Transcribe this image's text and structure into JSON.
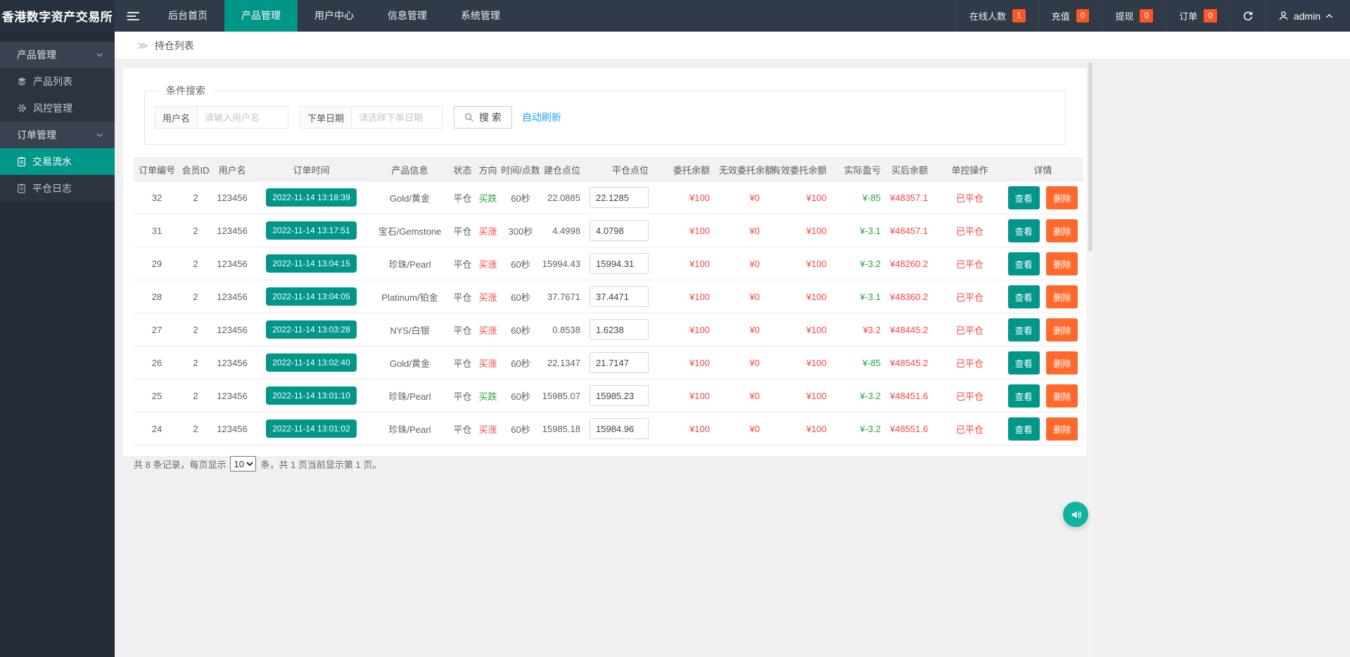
{
  "topbar": {
    "brand": "香港数字资产交易所",
    "nav": [
      {
        "name": "home",
        "label": "后台首页",
        "active": false
      },
      {
        "name": "product",
        "label": "产品管理",
        "active": true
      },
      {
        "name": "user-center",
        "label": "用户中心",
        "active": false
      },
      {
        "name": "info",
        "label": "信息管理",
        "active": false
      },
      {
        "name": "system",
        "label": "系统管理",
        "active": false
      }
    ],
    "stats": [
      {
        "name": "online",
        "label": "在线人数",
        "value": "1"
      },
      {
        "name": "recharge",
        "label": "充值",
        "value": "0"
      },
      {
        "name": "withdraw",
        "label": "提现",
        "value": "0"
      },
      {
        "name": "orders",
        "label": "订单",
        "value": "0"
      }
    ],
    "user": "admin"
  },
  "sidebar": {
    "sections": [
      {
        "label": "产品管理",
        "items": [
          {
            "name": "product-list",
            "label": "产品列表",
            "icon": "layers",
            "active": false
          },
          {
            "name": "risk-control",
            "label": "风控管理",
            "icon": "gear",
            "active": false
          }
        ]
      },
      {
        "label": "订单管理",
        "items": [
          {
            "name": "trade-flow",
            "label": "交易流水",
            "icon": "doc",
            "active": true
          },
          {
            "name": "close-log",
            "label": "平仓日志",
            "icon": "doc",
            "active": false
          }
        ]
      }
    ]
  },
  "breadcrumb": "持仓列表",
  "search": {
    "legend": "条件搜索",
    "username_label": "用户名",
    "username_placeholder": "请输入用户名",
    "date_label": "下单日期",
    "date_placeholder": "请选择下单日期",
    "search_button": "搜 索",
    "auto_refresh": "自动刷新"
  },
  "table": {
    "headers": [
      "订单编号",
      "会员ID",
      "用户名",
      "订单时间",
      "产品信息",
      "状态",
      "方向",
      "时间/点数",
      "建仓点位",
      "平仓点位",
      "委托余额",
      "无效委托余额",
      "有效委托余额",
      "实际盈亏",
      "买后余额",
      "单控操作",
      "详情"
    ],
    "view_label": "查看",
    "delete_label": "删除",
    "rows": [
      {
        "order_id": "32",
        "member_id": "2",
        "username": "123456",
        "time": "2022-11-14 13:18:39",
        "product": "Gold/黄金",
        "status": "平仓",
        "direction": "买跌",
        "direction_color": "green",
        "period": "60秒",
        "open_point": "22.0885",
        "close_point": "22.1285",
        "entrust": "¥100",
        "invalid_entrust": "¥0",
        "valid_entrust": "¥100",
        "pnl": "¥-85",
        "pnl_color": "green",
        "balance": "¥48357.1",
        "control": "已平仓"
      },
      {
        "order_id": "31",
        "member_id": "2",
        "username": "123456",
        "time": "2022-11-14 13:17:51",
        "product": "宝石/Gemstone",
        "status": "平仓",
        "direction": "买涨",
        "direction_color": "red",
        "period": "300秒",
        "open_point": "4.4998",
        "close_point": "4.0798",
        "entrust": "¥100",
        "invalid_entrust": "¥0",
        "valid_entrust": "¥100",
        "pnl": "¥-3.1",
        "pnl_color": "green",
        "balance": "¥48457.1",
        "control": "已平仓"
      },
      {
        "order_id": "29",
        "member_id": "2",
        "username": "123456",
        "time": "2022-11-14 13:04:15",
        "product": "珍珠/Pearl",
        "status": "平仓",
        "direction": "买涨",
        "direction_color": "red",
        "period": "60秒",
        "open_point": "15994.43",
        "close_point": "15994.31",
        "entrust": "¥100",
        "invalid_entrust": "¥0",
        "valid_entrust": "¥100",
        "pnl": "¥-3.2",
        "pnl_color": "green",
        "balance": "¥48260.2",
        "control": "已平仓"
      },
      {
        "order_id": "28",
        "member_id": "2",
        "username": "123456",
        "time": "2022-11-14 13:04:05",
        "product": "Platinum/铂金",
        "status": "平仓",
        "direction": "买涨",
        "direction_color": "red",
        "period": "60秒",
        "open_point": "37.7671",
        "close_point": "37.4471",
        "entrust": "¥100",
        "invalid_entrust": "¥0",
        "valid_entrust": "¥100",
        "pnl": "¥-3.1",
        "pnl_color": "green",
        "balance": "¥48360.2",
        "control": "已平仓"
      },
      {
        "order_id": "27",
        "member_id": "2",
        "username": "123456",
        "time": "2022-11-14 13:03:28",
        "product": "NYS/白银",
        "status": "平仓",
        "direction": "买涨",
        "direction_color": "red",
        "period": "60秒",
        "open_point": "0.8538",
        "close_point": "1.6238",
        "entrust": "¥100",
        "invalid_entrust": "¥0",
        "valid_entrust": "¥100",
        "pnl": "¥3.2",
        "pnl_color": "red",
        "balance": "¥48445.2",
        "control": "已平仓"
      },
      {
        "order_id": "26",
        "member_id": "2",
        "username": "123456",
        "time": "2022-11-14 13:02:40",
        "product": "Gold/黄金",
        "status": "平仓",
        "direction": "买涨",
        "direction_color": "red",
        "period": "60秒",
        "open_point": "22.1347",
        "close_point": "21.7147",
        "entrust": "¥100",
        "invalid_entrust": "¥0",
        "valid_entrust": "¥100",
        "pnl": "¥-85",
        "pnl_color": "green",
        "balance": "¥48545.2",
        "control": "已平仓"
      },
      {
        "order_id": "25",
        "member_id": "2",
        "username": "123456",
        "time": "2022-11-14 13:01:10",
        "product": "珍珠/Pearl",
        "status": "平仓",
        "direction": "买跌",
        "direction_color": "green",
        "period": "60秒",
        "open_point": "15985.07",
        "close_point": "15985.23",
        "entrust": "¥100",
        "invalid_entrust": "¥0",
        "valid_entrust": "¥100",
        "pnl": "¥-3.2",
        "pnl_color": "green",
        "balance": "¥48451.6",
        "control": "已平仓"
      },
      {
        "order_id": "24",
        "member_id": "2",
        "username": "123456",
        "time": "2022-11-14 13:01:02",
        "product": "珍珠/Pearl",
        "status": "平仓",
        "direction": "买涨",
        "direction_color": "red",
        "period": "60秒",
        "open_point": "15985.18",
        "close_point": "15984.96",
        "entrust": "¥100",
        "invalid_entrust": "¥0",
        "valid_entrust": "¥100",
        "pnl": "¥-3.2",
        "pnl_color": "green",
        "balance": "¥48551.6",
        "control": "已平仓"
      }
    ]
  },
  "pagination": {
    "text_before": "共 8 条记录，每页显示",
    "page_size": "10",
    "text_after": "条，共 1 页当前显示第 1 页。"
  },
  "colors": {
    "accent_teal": "#009688",
    "badge_orange": "#ff5722",
    "delete_orange": "#ff6a2c",
    "text_red": "#fa4343",
    "text_green": "#2f9e44",
    "link_blue": "#1e9fff"
  }
}
